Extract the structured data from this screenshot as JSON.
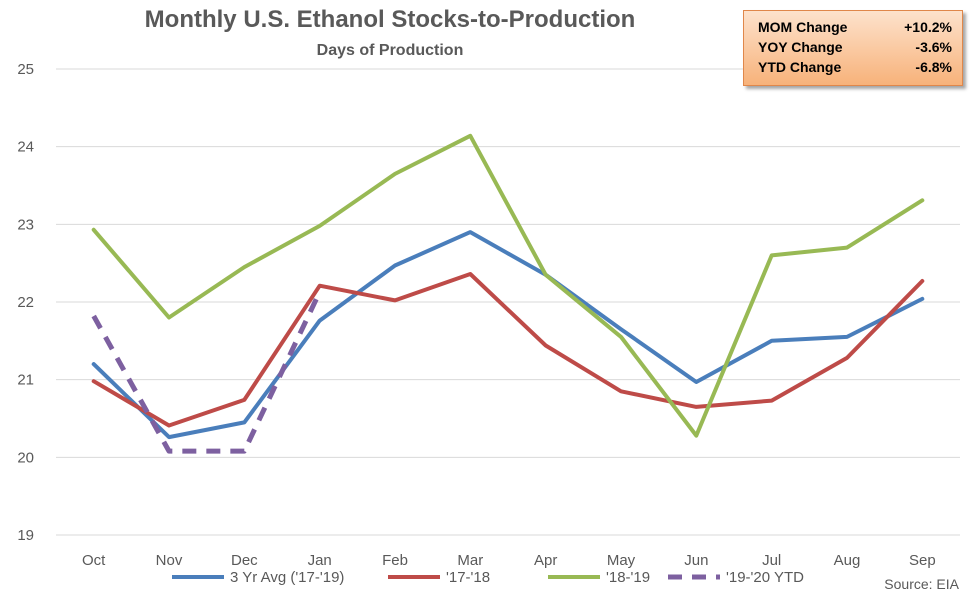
{
  "chart_data": {
    "type": "line",
    "title": "Monthly U.S. Ethanol Stocks-to-Production",
    "subtitle": "Days of Production",
    "xlabel": "",
    "ylabel": "",
    "categories": [
      "Oct",
      "Nov",
      "Dec",
      "Jan",
      "Feb",
      "Mar",
      "Apr",
      "May",
      "Jun",
      "Jul",
      "Aug",
      "Sep"
    ],
    "ylim": [
      19,
      25
    ],
    "yticks": [
      "19",
      "20",
      "21",
      "22",
      "23",
      "24",
      "25"
    ],
    "grid": true,
    "legend_position": "bottom",
    "series": [
      {
        "name": "3 Yr Avg ('17-'19)",
        "color": "#4a7ebb",
        "dashed": false,
        "values": [
          21.2,
          20.26,
          20.45,
          21.76,
          22.47,
          22.9,
          22.35,
          21.65,
          20.97,
          21.5,
          21.55,
          22.04
        ]
      },
      {
        "name": "'17-'18",
        "color": "#be4b48",
        "dashed": false,
        "values": [
          20.98,
          20.41,
          20.74,
          22.21,
          22.02,
          22.36,
          21.44,
          20.85,
          20.65,
          20.73,
          21.28,
          22.27
        ]
      },
      {
        "name": "'18-'19",
        "color": "#98b954",
        "dashed": false,
        "values": [
          22.93,
          21.8,
          22.45,
          22.98,
          23.65,
          24.14,
          22.35,
          21.55,
          20.28,
          22.6,
          22.7,
          23.31
        ]
      },
      {
        "name": "'19-'20 YTD",
        "color": "#7d60a0",
        "dashed": true,
        "values": [
          21.82,
          20.08,
          20.08,
          22.13,
          null,
          null,
          null,
          null,
          null,
          null,
          null,
          null
        ]
      }
    ]
  },
  "stats": [
    {
      "label": "MOM Change",
      "value": "+10.2%"
    },
    {
      "label": "YOY Change",
      "value": "-3.6%"
    },
    {
      "label": "YTD Change",
      "value": "-6.8%"
    }
  ],
  "source": "Source: EIA"
}
